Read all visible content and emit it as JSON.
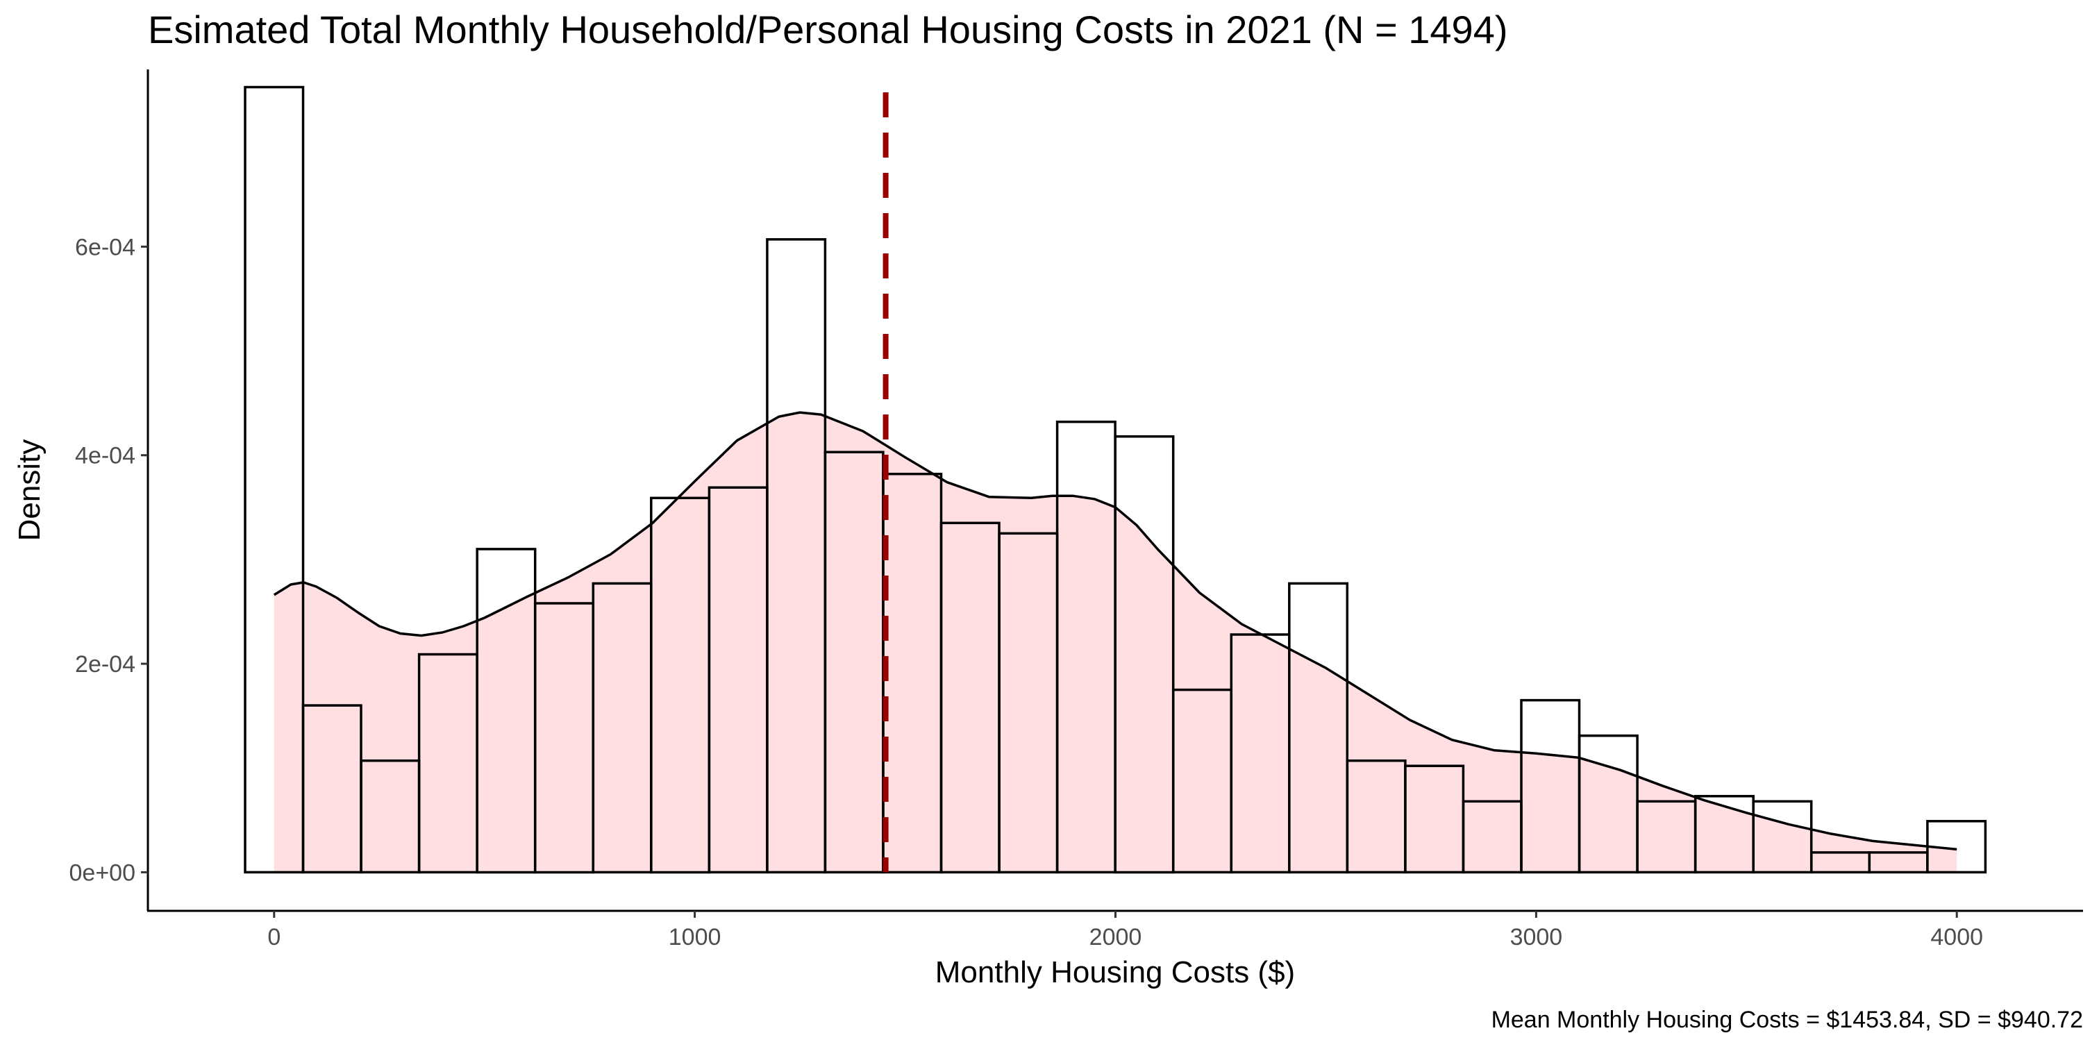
{
  "chart_data": {
    "type": "bar",
    "title": "Esimated Total Monthly Household/Personal Housing Costs in 2021 (N = 1494)",
    "xlabel": "Monthly Housing Costs ($)",
    "ylabel": "Density",
    "caption": "Mean Monthly Housing Costs = $1453.84, SD = $940.72",
    "xlim": [
      -300,
      4300
    ],
    "ylim": [
      -3.7e-05,
      0.00077
    ],
    "x_ticks": [
      {
        "value": 0,
        "label": "0"
      },
      {
        "value": 1000,
        "label": "1000"
      },
      {
        "value": 2000,
        "label": "2000"
      },
      {
        "value": 3000,
        "label": "3000"
      },
      {
        "value": 4000,
        "label": "4000"
      }
    ],
    "y_ticks": [
      {
        "value": 0,
        "label": "0e+00"
      },
      {
        "value": 0.0002,
        "label": "2e-04"
      },
      {
        "value": 0.0004,
        "label": "4e-04"
      },
      {
        "value": 0.0006,
        "label": "6e-04"
      }
    ],
    "histogram": {
      "bin_width": 137.9,
      "first_bin_left": -69,
      "densities": [
        0.000753,
        0.00016,
        0.000107,
        0.000209,
        0.00031,
        0.000258,
        0.000277,
        0.000359,
        0.000369,
        0.000607,
        0.000403,
        0.000382,
        0.000335,
        0.000325,
        0.000432,
        0.000418,
        0.000175,
        0.000228,
        0.000277,
        0.000107,
        0.000102,
        6.8e-05,
        0.000165,
        0.000131,
        6.8e-05,
        7.3e-05,
        6.8e-05,
        1.9e-05,
        1.9e-05,
        4.9e-05
      ],
      "outline_color": "#000000",
      "fill_color": "#ffffff"
    },
    "density_curve": {
      "x": [
        0,
        40,
        70,
        100,
        150,
        200,
        250,
        300,
        350,
        400,
        450,
        500,
        550,
        600,
        700,
        800,
        900,
        1000,
        1100,
        1200,
        1250,
        1300,
        1400,
        1500,
        1600,
        1700,
        1800,
        1850,
        1900,
        1950,
        2000,
        2050,
        2100,
        2200,
        2300,
        2400,
        2500,
        2600,
        2700,
        2800,
        2900,
        3000,
        3100,
        3200,
        3300,
        3400,
        3500,
        3600,
        3700,
        3800,
        3900,
        4000
      ],
      "y": [
        0.000266,
        0.000276,
        0.000278,
        0.000274,
        0.000263,
        0.000249,
        0.000236,
        0.000229,
        0.000227,
        0.00023,
        0.000236,
        0.000244,
        0.000254,
        0.000264,
        0.000283,
        0.000305,
        0.000335,
        0.000375,
        0.000414,
        0.000437,
        0.000441,
        0.000439,
        0.000423,
        0.000398,
        0.000374,
        0.00036,
        0.000359,
        0.000361,
        0.000361,
        0.000358,
        0.00035,
        0.000333,
        0.00031,
        0.000268,
        0.000238,
        0.000217,
        0.000196,
        0.000171,
        0.000146,
        0.000127,
        0.000117,
        0.000114,
        0.00011,
        9.8e-05,
        8.3e-05,
        6.9e-05,
        5.7e-05,
        4.6e-05,
        3.7e-05,
        3e-05,
        2.6e-05,
        2.2e-05
      ],
      "fill_color": "#ffdfe2",
      "line_color": "#000000"
    },
    "mean_line": {
      "x": 1453.84,
      "color": "#990000",
      "style": "dashed"
    },
    "grid": false,
    "legend": "none"
  }
}
